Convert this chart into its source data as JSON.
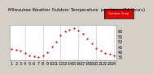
{
  "title": "Milwaukee Weather Outdoor Temperature  per Hour  (24 Hours)",
  "hours": [
    1,
    2,
    3,
    4,
    5,
    6,
    7,
    8,
    9,
    10,
    11,
    12,
    13,
    14,
    15,
    16,
    17,
    18,
    19,
    20,
    21,
    22,
    23,
    24
  ],
  "temperatures": [
    43,
    42,
    41,
    39,
    37,
    36,
    35,
    37,
    40,
    45,
    50,
    56,
    60,
    62,
    63,
    61,
    58,
    53,
    48,
    44,
    41,
    39,
    38,
    37
  ],
  "dot_color": "#dd0000",
  "fig_bg": "#d4d0c8",
  "plot_bg": "#ffffff",
  "grid_color": "#aaaaaa",
  "ylabel_right_values": [
    60,
    55,
    50,
    45,
    40,
    35
  ],
  "ylim": [
    32,
    66
  ],
  "dashed_x_positions": [
    4,
    8,
    12,
    16,
    20,
    24
  ],
  "tick_label_size": 3.5,
  "title_fontsize": 3.8,
  "marker_size": 2.5,
  "legend_color": "#dd0000",
  "legend_label": "Outdoor Temp"
}
